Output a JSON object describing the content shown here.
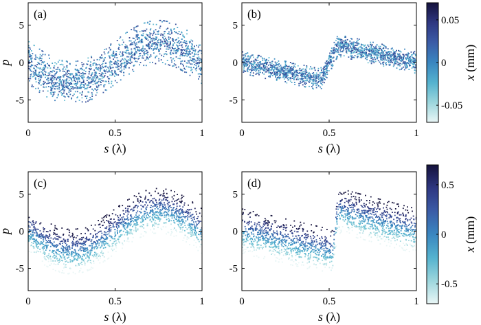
{
  "chart_data": [
    {
      "panel_label": "(a)",
      "type": "scatter",
      "pattern": "sine",
      "xlabel_var": "s",
      "xlabel_unit": "(λ)",
      "ylabel": "p",
      "xlim": [
        0,
        1
      ],
      "ylim": [
        -8,
        8
      ],
      "xticks": [
        0,
        0.5,
        1
      ],
      "xtick_labels": [
        "0",
        "0.5",
        "1"
      ],
      "yticks": [
        5,
        0,
        -5
      ],
      "ytick_labels": [
        "5",
        "0",
        "-5"
      ],
      "centerline_samples": [
        [
          0,
          0
        ],
        [
          0.25,
          -2.6
        ],
        [
          0.5,
          0
        ],
        [
          0.75,
          2.9
        ],
        [
          1,
          0
        ]
      ],
      "band_half_width": 2.4,
      "color_encoding": "random"
    },
    {
      "panel_label": "(b)",
      "type": "scatter",
      "pattern": "overbunched",
      "xlabel_var": "s",
      "xlabel_unit": "(λ)",
      "ylabel": "",
      "xlim": [
        0,
        1
      ],
      "ylim": [
        -8,
        8
      ],
      "xticks": [
        0,
        0.5,
        1
      ],
      "xtick_labels": [
        "0",
        "0.5",
        "1"
      ],
      "yticks": [
        5,
        0,
        -5
      ],
      "ytick_labels": [
        "5",
        "0",
        "-5"
      ],
      "centerline_samples": [
        [
          0,
          0
        ],
        [
          0.45,
          -2.3
        ],
        [
          0.55,
          2.3
        ],
        [
          1,
          0
        ]
      ],
      "band_half_width": 1.2,
      "color_encoding": "random"
    },
    {
      "panel_label": "(c)",
      "type": "scatter",
      "pattern": "sine",
      "xlabel_var": "s",
      "xlabel_unit": "(λ)",
      "ylabel": "p",
      "xlim": [
        0,
        1
      ],
      "ylim": [
        -8,
        8
      ],
      "xticks": [
        0,
        0.5,
        1
      ],
      "xtick_labels": [
        "0",
        "0.5",
        "1"
      ],
      "yticks": [
        5,
        0,
        -5
      ],
      "ytick_labels": [
        "5",
        "0",
        "-5"
      ],
      "centerline_samples": [
        [
          0,
          0
        ],
        [
          0.25,
          -2.6
        ],
        [
          0.5,
          0
        ],
        [
          0.75,
          2.9
        ],
        [
          1,
          0
        ]
      ],
      "band_half_width": 2.4,
      "color_encoding": "correlated"
    },
    {
      "panel_label": "(d)",
      "type": "scatter",
      "pattern": "step",
      "xlabel_var": "s",
      "xlabel_unit": "(λ)",
      "ylabel": "",
      "xlim": [
        0,
        1
      ],
      "ylim": [
        -8,
        8
      ],
      "xticks": [
        0,
        0.5,
        1
      ],
      "xtick_labels": [
        "0",
        "0.5",
        "1"
      ],
      "yticks": [
        5,
        0,
        -5
      ],
      "ytick_labels": [
        "5",
        "0",
        "-5"
      ],
      "centerline_samples": [
        [
          0,
          0
        ],
        [
          0.52,
          -2.8
        ],
        [
          0.55,
          2.8
        ],
        [
          1,
          0
        ]
      ],
      "band_half_width": 2.4,
      "color_encoding": "correlated"
    }
  ],
  "colorbars": [
    {
      "label_var": "x",
      "label_unit": "(mm)",
      "range": [
        -0.07,
        0.07
      ],
      "ticks": [
        0.05,
        0,
        -0.05
      ],
      "tick_labels": [
        "0.05",
        "0",
        "-0.05"
      ],
      "colormap": [
        "#e9f6f6",
        "#9ad5dc",
        "#55b3cf",
        "#3a86c0",
        "#3b5ba6",
        "#2f3882",
        "#15123c"
      ]
    },
    {
      "label_var": "x",
      "label_unit": "(mm)",
      "range": [
        -0.7,
        0.7
      ],
      "ticks": [
        0.5,
        0,
        -0.5
      ],
      "tick_labels": [
        "0.5",
        "0",
        "-0.5"
      ],
      "colormap": [
        "#e9f6f6",
        "#9ad5dc",
        "#55b3cf",
        "#3a86c0",
        "#3b5ba6",
        "#2f3882",
        "#15123c"
      ]
    }
  ]
}
